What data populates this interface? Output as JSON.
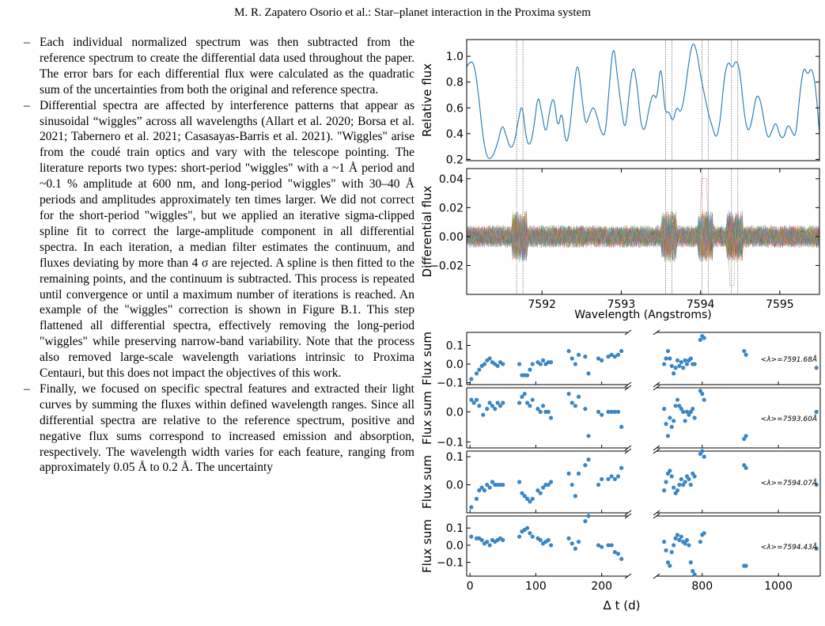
{
  "page": {
    "header": "M. R. Zapatero Osorio et al.: Star–planet interaction in the Proxima system"
  },
  "body": {
    "items": [
      {
        "dash": "–",
        "text": "Each individual normalized spectrum was then subtracted from the reference spectrum to create the differential data used throughout the paper. The error bars for each differential flux were calculated as the quadratic sum of the uncertainties from both the original and reference spectra."
      },
      {
        "dash": "–",
        "text": "Differential spectra are affected by interference patterns that appear as sinusoidal “wiggles” across all wavelengths (Allart et al. 2020; Borsa et al. 2021; Tabernero et al. 2021; Casasayas-Barris et al. 2021). \"Wiggles\" arise from the coudé train optics and vary with the telescope pointing. The literature reports two types: short-period \"wiggles\" with a ~1 Å period and ~0.1 % amplitude at 600 nm, and long-period \"wiggles\" with 30–40 Å periods and amplitudes approximately ten times larger. We did not correct for the short-period \"wiggles\", but we applied an iterative sigma-clipped spline fit to correct the large-amplitude component in all differential spectra. In each iteration, a median filter estimates the continuum, and fluxes deviating by more than 4 σ are rejected. A spline is then fitted to the remaining points, and the continuum is subtracted. This process is repeated until convergence or until a maximum number of iterations is reached. An example of the \"wiggles\" correction is shown in Figure B.1. This step flattened all differential spectra, effectively removing the long-period \"wiggles\" while preserving narrow-band variability. Note that the process also removed large-scale wavelength variations intrinsic to Proxima Centauri, but this does not impact the objectives of this work."
      },
      {
        "dash": "–",
        "text": "Finally, we focused on specific spectral features and extracted their light curves by summing the fluxes within defined wavelength ranges. Since all differential spectra are relative to the reference spectrum, positive and negative flux sums correspond to increased emission and absorption, respectively. The wavelength width varies for each feature, ranging from approximately 0.05 Å to 0.2 Å. The uncertainty"
      }
    ]
  },
  "figure": {
    "top_panel": {
      "ylabel": "Relative flux",
      "yticks": [
        "1.0",
        "0.8",
        "0.6",
        "0.4",
        "0.2"
      ],
      "line_color": "#1f77b4"
    },
    "mid_panel": {
      "ylabel": "Differential flux",
      "yticks": [
        "0.04",
        "0.02",
        "0.00",
        "−0.02"
      ],
      "xticks": [
        "7592",
        "7593",
        "7594",
        "7595"
      ],
      "xlabel": "Wavelength (Angstroms)"
    },
    "lc_panels": {
      "ylabel": "Flux sum",
      "xticks_left": [
        "0",
        "100",
        "200"
      ],
      "xticks_right": [
        "800",
        "1000"
      ],
      "xlabel": "Δ t (d)",
      "point_color": "#3a86c4",
      "panels": [
        {
          "label": "<λ>=7591.68Å",
          "yticks": [
            "0.1",
            "0.0",
            "−0.1"
          ]
        },
        {
          "label": "<λ>=7593.60Å",
          "yticks": [
            "0.0",
            "−0.1"
          ]
        },
        {
          "label": "<λ>=7594.07Å",
          "yticks": [
            "0.1",
            "0.0"
          ]
        },
        {
          "label": "<λ>=7594.43Å",
          "yticks": [
            "0.1",
            "0.0",
            "−0.1"
          ]
        }
      ]
    }
  },
  "chart_data": [
    {
      "type": "line",
      "ylabel": "Relative flux",
      "xlim": [
        7591.05,
        7595.5
      ],
      "ylim": [
        0.19,
        1.13
      ],
      "x": [
        7591.05,
        7591.1,
        7591.15,
        7591.2,
        7591.25,
        7591.3,
        7591.35,
        7591.4,
        7591.45,
        7591.5,
        7591.55,
        7591.6,
        7591.65,
        7591.7,
        7591.75,
        7591.8,
        7591.85,
        7591.9,
        7591.95,
        7592.0,
        7592.05,
        7592.1,
        7592.15,
        7592.2,
        7592.25,
        7592.3,
        7592.35,
        7592.4,
        7592.45,
        7592.5,
        7592.55,
        7592.6,
        7592.65,
        7592.7,
        7592.75,
        7592.8,
        7592.85,
        7592.9,
        7592.95,
        7593.0,
        7593.05,
        7593.1,
        7593.15,
        7593.2,
        7593.25,
        7593.3,
        7593.35,
        7593.4,
        7593.45,
        7593.5,
        7593.55,
        7593.6,
        7593.65,
        7593.7,
        7593.75,
        7593.8,
        7593.85,
        7593.9,
        7593.95,
        7594.0,
        7594.05,
        7594.1,
        7594.15,
        7594.2,
        7594.25,
        7594.3,
        7594.35,
        7594.4,
        7594.45,
        7594.5,
        7594.55,
        7594.6,
        7594.65,
        7594.7,
        7594.75,
        7594.8,
        7594.85,
        7594.9,
        7594.95,
        7595.0,
        7595.05,
        7595.1,
        7595.15,
        7595.2,
        7595.25,
        7595.3,
        7595.35,
        7595.4,
        7595.45,
        7595.5
      ],
      "y": [
        0.92,
        0.97,
        0.93,
        0.7,
        0.4,
        0.22,
        0.2,
        0.25,
        0.35,
        0.48,
        0.38,
        0.28,
        0.32,
        0.5,
        0.65,
        0.35,
        0.3,
        0.45,
        0.72,
        0.55,
        0.38,
        0.6,
        0.7,
        0.42,
        0.6,
        0.3,
        0.42,
        0.75,
        0.98,
        0.7,
        0.45,
        0.55,
        0.62,
        0.52,
        0.4,
        0.38,
        0.78,
        1.12,
        0.85,
        0.6,
        0.4,
        0.72,
        0.95,
        0.78,
        0.45,
        0.42,
        0.6,
        0.72,
        0.65,
        0.98,
        0.55,
        0.58,
        0.48,
        0.62,
        0.55,
        0.7,
        0.95,
        1.12,
        1.05,
        0.85,
        0.7,
        0.55,
        0.45,
        0.35,
        0.5,
        0.85,
        0.97,
        0.9,
        0.98,
        0.88,
        0.55,
        0.4,
        0.5,
        0.7,
        0.68,
        0.5,
        0.35,
        0.42,
        0.5,
        0.38,
        0.36,
        0.48,
        0.42,
        0.36,
        0.7,
        0.93,
        0.85,
        0.92,
        0.78,
        0.4
      ]
    },
    {
      "type": "line",
      "xlabel": "Wavelength (Angstroms)",
      "ylabel": "Differential flux",
      "xlim": [
        7591.05,
        7595.5
      ],
      "ylim": [
        -0.04,
        0.047
      ]
    },
    {
      "type": "scatter",
      "xlabel": "Δ t (d)",
      "ylabel": "Flux sum",
      "series": [
        {
          "name": "<λ>=7591.68Å",
          "x": [
            2,
            10,
            14,
            18,
            22,
            26,
            30,
            34,
            38,
            42,
            46,
            50,
            75,
            79,
            83,
            87,
            91,
            95,
            103,
            107,
            111,
            115,
            119,
            123,
            150,
            155,
            160,
            165,
            175,
            180,
            195,
            200,
            210,
            215,
            220,
            225,
            230,
            700,
            705,
            710,
            715,
            720,
            725,
            730,
            735,
            740,
            745,
            750,
            755,
            760,
            765,
            770,
            775,
            780,
            795,
            800,
            805,
            910,
            915,
            1100
          ],
          "y": [
            -0.08,
            -0.05,
            -0.03,
            -0.01,
            0.0,
            0.02,
            0.03,
            0.01,
            0.0,
            -0.01,
            0.01,
            0.0,
            0.0,
            -0.06,
            -0.06,
            -0.06,
            -0.03,
            0.0,
            0.01,
            0.0,
            0.02,
            0.0,
            0.01,
            0.01,
            0.07,
            0.03,
            0.0,
            0.05,
            0.04,
            -0.05,
            0.03,
            0.02,
            0.04,
            0.05,
            0.04,
            0.05,
            0.07,
            0.0,
            0.03,
            0.07,
            0.03,
            -0.01,
            -0.05,
            -0.02,
            0.02,
            -0.01,
            0.01,
            -0.02,
            0.02,
            0.0,
            0.02,
            0.03,
            0.0,
            0.0,
            0.13,
            0.15,
            0.14,
            0.07,
            0.05,
            -0.02
          ]
        },
        {
          "name": "<λ>=7593.60Å",
          "x": [
            2,
            6,
            10,
            14,
            20,
            26,
            30,
            34,
            38,
            42,
            46,
            50,
            75,
            79,
            83,
            87,
            91,
            95,
            103,
            107,
            111,
            115,
            119,
            123,
            150,
            155,
            160,
            165,
            175,
            180,
            195,
            200,
            210,
            215,
            220,
            225,
            230,
            700,
            705,
            710,
            715,
            720,
            725,
            730,
            735,
            740,
            745,
            750,
            755,
            760,
            765,
            770,
            775,
            780,
            795,
            800,
            805,
            910,
            915,
            1100
          ],
          "y": [
            0.04,
            0.03,
            0.04,
            0.02,
            -0.01,
            0.01,
            0.03,
            0.02,
            0.01,
            0.03,
            0.02,
            0.03,
            0.03,
            0.05,
            0.06,
            0.03,
            0.02,
            0.04,
            0.01,
            0.0,
            0.02,
            0.0,
            0.0,
            -0.02,
            0.06,
            0.03,
            0.02,
            0.05,
            0.01,
            -0.08,
            0.0,
            -0.01,
            0.0,
            0.0,
            0.0,
            0.0,
            -0.05,
            0.01,
            -0.04,
            -0.08,
            -0.02,
            -0.05,
            -0.03,
            0.02,
            0.04,
            0.02,
            0.01,
            0.0,
            -0.03,
            0.0,
            -0.01,
            0.0,
            0.01,
            -0.02,
            0.07,
            0.06,
            0.04,
            -0.09,
            -0.08,
            0.0
          ]
        },
        {
          "name": "<λ>=7594.07Å",
          "x": [
            2,
            10,
            14,
            18,
            22,
            26,
            30,
            34,
            38,
            42,
            46,
            50,
            75,
            79,
            83,
            87,
            91,
            95,
            103,
            107,
            111,
            115,
            119,
            123,
            150,
            155,
            160,
            165,
            175,
            180,
            195,
            200,
            210,
            215,
            220,
            225,
            230,
            700,
            705,
            710,
            715,
            720,
            725,
            730,
            735,
            740,
            745,
            750,
            755,
            760,
            765,
            770,
            775,
            780,
            795,
            800,
            805,
            910,
            915,
            1100
          ],
          "y": [
            -0.08,
            -0.05,
            -0.02,
            -0.01,
            -0.02,
            0.0,
            -0.01,
            0.01,
            0.0,
            0.0,
            0.0,
            0.0,
            0.01,
            -0.03,
            -0.04,
            -0.05,
            -0.06,
            -0.05,
            -0.02,
            -0.03,
            -0.01,
            0.0,
            0.0,
            0.01,
            0.04,
            0.0,
            -0.04,
            0.04,
            0.07,
            0.09,
            0.0,
            0.02,
            0.02,
            0.03,
            0.02,
            0.03,
            0.06,
            -0.02,
            0.01,
            0.04,
            0.05,
            0.03,
            -0.01,
            -0.03,
            -0.02,
            0.0,
            0.02,
            0.0,
            0.01,
            0.03,
            0.02,
            0.0,
            0.04,
            0.03,
            0.11,
            0.12,
            0.1,
            0.07,
            0.06,
            0.0
          ]
        },
        {
          "name": "<λ>=7594.43Å",
          "x": [
            2,
            10,
            14,
            18,
            22,
            26,
            30,
            34,
            38,
            42,
            46,
            50,
            75,
            79,
            83,
            87,
            91,
            95,
            103,
            107,
            111,
            115,
            119,
            123,
            150,
            155,
            160,
            165,
            175,
            180,
            195,
            200,
            210,
            215,
            220,
            225,
            230,
            700,
            705,
            710,
            715,
            720,
            725,
            730,
            735,
            740,
            745,
            750,
            755,
            760,
            765,
            770,
            775,
            780,
            795,
            800,
            805,
            910,
            915,
            1100
          ],
          "y": [
            0.05,
            0.04,
            0.04,
            0.03,
            0.01,
            0.02,
            0.0,
            0.03,
            0.02,
            0.03,
            0.04,
            0.03,
            0.05,
            0.08,
            0.09,
            0.1,
            0.07,
            0.05,
            0.04,
            0.03,
            0.01,
            0.02,
            0.03,
            0.0,
            0.04,
            0.01,
            -0.02,
            0.02,
            0.14,
            0.18,
            0.0,
            -0.01,
            0.0,
            0.0,
            -0.04,
            -0.05,
            -0.08,
            0.02,
            -0.03,
            -0.1,
            -0.12,
            -0.04,
            0.0,
            0.04,
            0.06,
            0.03,
            0.05,
            0.02,
            0.01,
            0.03,
            0.0,
            -0.1,
            -0.15,
            -0.17,
            0.02,
            0.06,
            0.07,
            -0.12,
            -0.12,
            -0.02
          ]
        }
      ]
    }
  ]
}
